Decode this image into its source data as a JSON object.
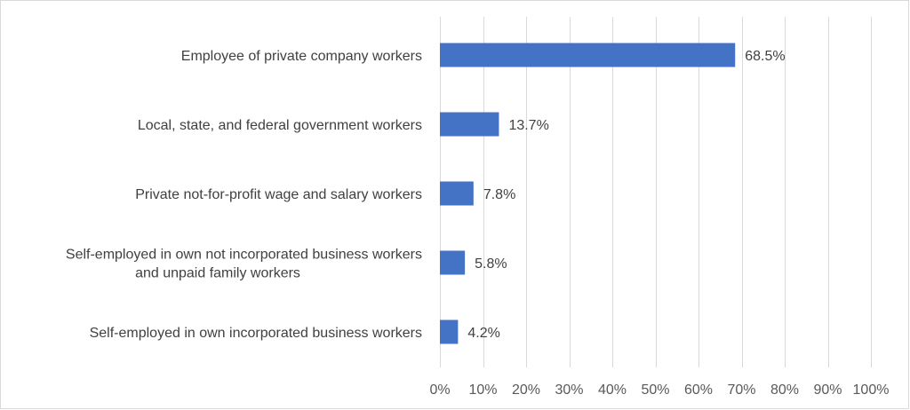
{
  "chart_data": {
    "type": "bar",
    "orientation": "horizontal",
    "categories": [
      [
        "Employee of private company workers"
      ],
      [
        "Local, state, and federal government workers"
      ],
      [
        "Private not-for-profit wage and salary workers"
      ],
      [
        "Self-employed in own not incorporated business workers",
        "and unpaid family workers"
      ],
      [
        "Self-employed in own incorporated business workers"
      ]
    ],
    "values": [
      68.5,
      13.7,
      7.8,
      5.8,
      4.2
    ],
    "value_labels": [
      "68.5%",
      "13.7%",
      "7.8%",
      "5.8%",
      "4.2%"
    ],
    "xlim": [
      0,
      100
    ],
    "x_ticks": [
      0,
      10,
      20,
      30,
      40,
      50,
      60,
      70,
      80,
      90,
      100
    ],
    "x_tick_labels": [
      "0%",
      "10%",
      "20%",
      "30%",
      "40%",
      "50%",
      "60%",
      "70%",
      "80%",
      "90%",
      "100%"
    ],
    "grid": "vertical",
    "legend": "none",
    "bar_color": "#4472c4",
    "grid_color": "#d9d9d9",
    "text_color": "#404040"
  }
}
